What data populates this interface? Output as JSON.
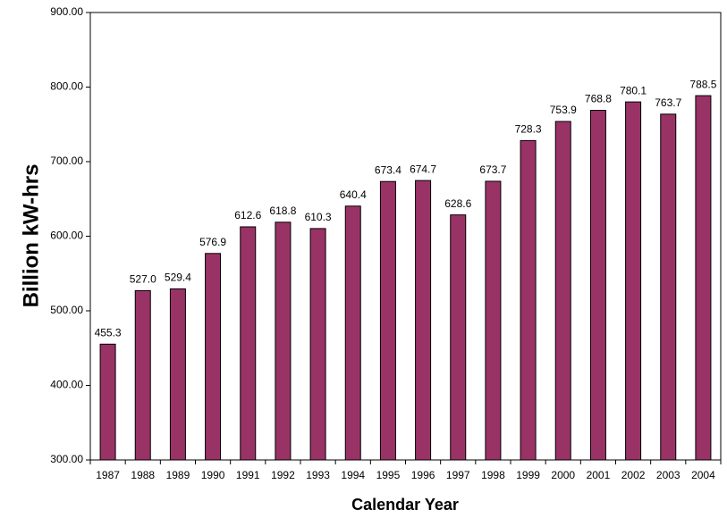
{
  "chart_data": {
    "type": "bar",
    "y_label": "Billion kW-hrs",
    "x_label": "Calendar Year",
    "categories": [
      "1987",
      "1988",
      "1989",
      "1990",
      "1991",
      "1992",
      "1993",
      "1994",
      "1995",
      "1996",
      "1997",
      "1998",
      "1999",
      "2000",
      "2001",
      "2002",
      "2003",
      "2004"
    ],
    "values": [
      455.3,
      527.0,
      529.4,
      576.9,
      612.6,
      618.8,
      610.3,
      640.4,
      673.4,
      674.7,
      628.6,
      673.7,
      728.3,
      753.9,
      768.8,
      780.1,
      763.7,
      788.5
    ],
    "value_labels": [
      "455.3",
      "527.0",
      "529.4",
      "576.9",
      "612.6",
      "618.8",
      "610.3",
      "640.4",
      "673.4",
      "674.7",
      "628.6",
      "673.7",
      "728.3",
      "753.9",
      "768.8",
      "780.1",
      "763.7",
      "788.5"
    ],
    "color": "#993366",
    "ylim": [
      300,
      900
    ],
    "yticks": [
      {
        "value": 300,
        "label": "300.00"
      },
      {
        "value": 400,
        "label": "400.00"
      },
      {
        "value": 500,
        "label": "500.00"
      },
      {
        "value": 600,
        "label": "600.00"
      },
      {
        "value": 700,
        "label": "700.00"
      },
      {
        "value": 800,
        "label": "800.00"
      },
      {
        "value": 900,
        "label": "900.00"
      }
    ],
    "grid": false
  }
}
